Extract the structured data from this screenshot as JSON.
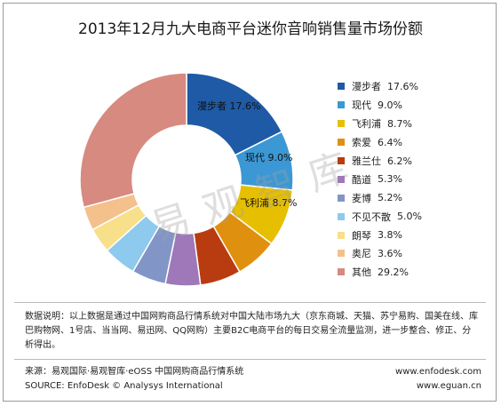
{
  "title": "2013年12月九大电商平台迷你音响销售量市场份额",
  "watermark": "易观智库",
  "colors": {
    "frame": "#9a9a9a",
    "divider": "#bbbbbb"
  },
  "chart_data": {
    "type": "pie",
    "variant": "donut",
    "title": "2013年12月九大电商平台迷你音响销售量市场份额",
    "unit": "%",
    "legend_position": "right",
    "slices": [
      {
        "name": "漫步者",
        "value": 17.6,
        "color": "#1f5aa6",
        "label": "漫步者 17.6%"
      },
      {
        "name": "现代",
        "value": 9.0,
        "color": "#3b98d4",
        "label": "现代 9.0%"
      },
      {
        "name": "飞利浦",
        "value": 8.7,
        "color": "#e6bf00",
        "label": "飞利浦 8.7%"
      },
      {
        "name": "索爱",
        "value": 6.4,
        "color": "#e0900f",
        "label": "索爱 6.4%"
      },
      {
        "name": "雅兰仕",
        "value": 6.2,
        "color": "#b93c10",
        "label": "雅兰仕 6.2%"
      },
      {
        "name": "酷道",
        "value": 5.3,
        "color": "#9e78b8",
        "label": "酷道 5.3%"
      },
      {
        "name": "麦博",
        "value": 5.2,
        "color": "#8196c6",
        "label": "麦博 5.2%"
      },
      {
        "name": "不见不散",
        "value": 5.0,
        "color": "#8ec9ee",
        "label": "不见不散 5.0%"
      },
      {
        "name": "朗琴",
        "value": 3.8,
        "color": "#f8e08a",
        "label": "朗琴 3.8%"
      },
      {
        "name": "奥尼",
        "value": 3.6,
        "color": "#f4c08c",
        "label": "奥尼 3.6%"
      },
      {
        "name": "其他",
        "value": 29.2,
        "color": "#d78a80",
        "label": "其他 29.2%"
      }
    ],
    "legend": [
      {
        "name": "漫步者",
        "value": "17.6%"
      },
      {
        "name": "现代",
        "value": "9.0%"
      },
      {
        "name": "飞利浦",
        "value": "8.7%"
      },
      {
        "name": "索爱",
        "value": "6.4%"
      },
      {
        "name": "雅兰仕",
        "value": "6.2%"
      },
      {
        "name": "酷道",
        "value": "5.3%"
      },
      {
        "name": "麦博",
        "value": "5.2%"
      },
      {
        "name": "不见不散",
        "value": "5.0%"
      },
      {
        "name": "朗琴",
        "value": "3.8%"
      },
      {
        "name": "奥尼",
        "value": "3.6%"
      },
      {
        "name": "其他",
        "value": "29.2%"
      }
    ]
  },
  "footer": {
    "description": "数据说明：以上数据是通过中国网购商品行情系统对中国大陆市场九大（京东商城、天猫、苏宁易购、国美在线、库巴购物网、1号店、当当网、易迅网、QQ网购）主要B2C电商平台的每日交易全流量监测，进一步整合、修正、分析得出。",
    "source_cn": "来源：易观国际·易观智库·eOSS 中国网购商品行情系统",
    "source_en": "SOURCE: EnfoDesk © Analysys International",
    "url1": "www.enfodesk.com",
    "url2": "www.eguan.cn"
  }
}
